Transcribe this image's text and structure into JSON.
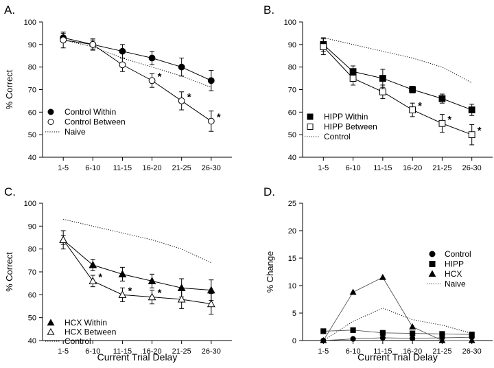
{
  "chart_data": [
    {
      "type": "line",
      "panel_label": "A.",
      "ylabel": "% Correct",
      "xlabel": "",
      "ylim": [
        40,
        100
      ],
      "yticks": [
        40,
        50,
        60,
        70,
        80,
        90,
        100
      ],
      "categories": [
        "1-5",
        "6-10",
        "11-15",
        "16-20",
        "21-25",
        "26-30"
      ],
      "legend_position": "lower-left",
      "series": [
        {
          "name": "Control Within",
          "marker": "circle-filled",
          "line": "solid",
          "values": [
            93,
            90,
            87,
            84,
            80,
            74
          ],
          "errors": [
            2,
            2,
            3,
            3,
            4,
            4.5
          ],
          "sig": [
            false,
            false,
            false,
            false,
            false,
            false
          ]
        },
        {
          "name": "Control Between",
          "marker": "circle-open",
          "line": "solid",
          "values": [
            92,
            90,
            81,
            74,
            65,
            56
          ],
          "errors": [
            3.5,
            2.5,
            3,
            3,
            4,
            4.5
          ],
          "sig": [
            false,
            false,
            false,
            true,
            true,
            true
          ]
        },
        {
          "name": "Naive",
          "marker": "none",
          "line": "dotted",
          "values": [
            92,
            89,
            84,
            80,
            76,
            71
          ],
          "errors": null,
          "sig": null
        }
      ]
    },
    {
      "type": "line",
      "panel_label": "B.",
      "ylabel": "",
      "xlabel": "",
      "ylim": [
        40,
        100
      ],
      "yticks": [
        40,
        50,
        60,
        70,
        80,
        90,
        100
      ],
      "categories": [
        "1-5",
        "6-10",
        "11-15",
        "16-20",
        "21-25",
        "26-30"
      ],
      "legend_position": "lower-left",
      "series": [
        {
          "name": "HIPP Within",
          "marker": "square-filled",
          "line": "solid",
          "values": [
            90,
            78,
            75,
            70,
            66,
            61
          ],
          "errors": [
            3,
            2.5,
            4,
            1.5,
            2,
            2.5
          ],
          "sig": [
            false,
            false,
            false,
            false,
            false,
            false
          ]
        },
        {
          "name": "HIPP Between",
          "marker": "square-open",
          "line": "solid",
          "values": [
            89,
            75,
            69,
            61,
            55,
            50
          ],
          "errors": [
            3.5,
            3,
            3,
            3,
            4,
            4.5
          ],
          "sig": [
            false,
            false,
            false,
            true,
            true,
            true
          ]
        },
        {
          "name": "Control",
          "marker": "none",
          "line": "dotted",
          "values": [
            93,
            90,
            87,
            84,
            80,
            73
          ],
          "errors": null,
          "sig": null
        }
      ]
    },
    {
      "type": "line",
      "panel_label": "C.",
      "ylabel": "% Correct",
      "xlabel": "Current Trial Delay",
      "ylim": [
        40,
        100
      ],
      "yticks": [
        40,
        50,
        60,
        70,
        80,
        90,
        100
      ],
      "categories": [
        "1-5",
        "6-10",
        "11-15",
        "16-20",
        "21-25",
        "26-30"
      ],
      "legend_position": "lower-left",
      "series": [
        {
          "name": "HCX Within",
          "marker": "triangle-filled",
          "line": "solid",
          "values": [
            84,
            73,
            69,
            66,
            63,
            62
          ],
          "errors": [
            2,
            2.5,
            3,
            3,
            4,
            4.5
          ],
          "sig": [
            false,
            false,
            false,
            false,
            false,
            false
          ]
        },
        {
          "name": "HCX Between",
          "marker": "triangle-open",
          "line": "solid",
          "values": [
            84,
            66,
            60,
            59,
            58,
            56
          ],
          "errors": [
            4,
            2.5,
            3,
            3,
            4,
            4.5
          ],
          "sig": [
            false,
            true,
            true,
            true,
            false,
            false
          ]
        },
        {
          "name": "Control",
          "marker": "none",
          "line": "dotted",
          "values": [
            93,
            90,
            87,
            84,
            80,
            74
          ],
          "errors": null,
          "sig": null
        }
      ]
    },
    {
      "type": "line",
      "panel_label": "D.",
      "ylabel": "% Change",
      "xlabel": "Current Trial Delay",
      "ylim": [
        0,
        25
      ],
      "yticks": [
        0,
        5,
        10,
        15,
        20,
        25
      ],
      "categories": [
        "1-5",
        "6-10",
        "11-15",
        "16-20",
        "21-25",
        "26-30"
      ],
      "legend_position": "right",
      "series": [
        {
          "name": "Control",
          "marker": "circle-filled",
          "line": "thin",
          "values": [
            0,
            0.3,
            0.5,
            0.4,
            0.5,
            0.6
          ],
          "errors": null,
          "sig": null
        },
        {
          "name": "HIPP",
          "marker": "square-filled",
          "line": "thin",
          "values": [
            1.7,
            1.9,
            1.4,
            1.3,
            1.2,
            1.1
          ],
          "errors": null,
          "sig": null
        },
        {
          "name": "HCX",
          "marker": "triangle-filled",
          "line": "thin",
          "values": [
            0,
            8.8,
            11.5,
            2.5,
            0,
            0
          ],
          "errors": null,
          "sig": null
        },
        {
          "name": "Naive",
          "marker": "none",
          "line": "dotted",
          "values": [
            0,
            3.5,
            5.9,
            3.8,
            2.8,
            1.3
          ],
          "errors": null,
          "sig": null
        }
      ]
    }
  ]
}
